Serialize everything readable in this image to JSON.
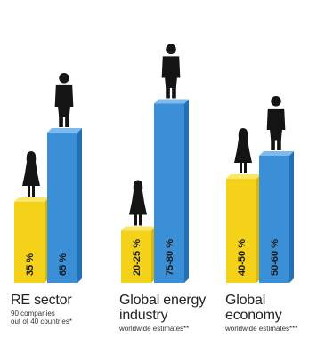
{
  "chart_data": {
    "type": "bar",
    "title": "",
    "xlabel": "",
    "ylabel": "",
    "grid": false,
    "legend": "none",
    "colors": {
      "women": "#f5d21a",
      "women_side": "#d9b60c",
      "women_top": "#fae46a",
      "men": "#3a8fd6",
      "men_side": "#2470b4",
      "men_top": "#7db9ea",
      "figure": "#141414"
    },
    "icons": [
      "female-figure-icon",
      "male-figure-icon"
    ],
    "groups": [
      {
        "title_lines": [
          "RE sector"
        ],
        "subtitle_lines": [
          "90 companies",
          "out of 40 countries*"
        ],
        "bars": [
          {
            "gender": "women",
            "label": "35 %",
            "value": 35
          },
          {
            "gender": "men",
            "label": "65 %",
            "value": 65
          }
        ]
      },
      {
        "title_lines": [
          "Global energy",
          "industry"
        ],
        "subtitle_lines": [
          "worldwide estimates**"
        ],
        "bars": [
          {
            "gender": "women",
            "label": "20-25 %",
            "value": 22.5
          },
          {
            "gender": "men",
            "label": "75-80 %",
            "value": 77.5
          }
        ]
      },
      {
        "title_lines": [
          "Global economy"
        ],
        "subtitle_lines": [
          "worldwide estimates***"
        ],
        "bars": [
          {
            "gender": "women",
            "label": "40-50 %",
            "value": 45
          },
          {
            "gender": "men",
            "label": "50-60 %",
            "value": 55
          }
        ]
      }
    ]
  }
}
